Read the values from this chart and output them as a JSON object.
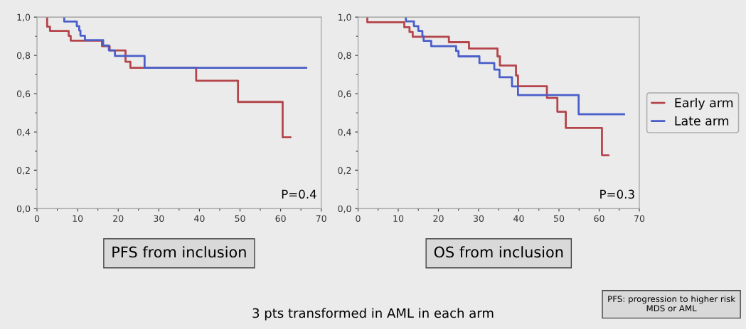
{
  "chart_data": [
    {
      "type": "step",
      "title": "PFS from inclusion",
      "annotations": [
        "P=0.4"
      ],
      "xlim": [
        0,
        70
      ],
      "xticks": [
        0,
        10,
        20,
        30,
        40,
        50,
        60,
        70
      ],
      "ylim": [
        0,
        1
      ],
      "yticks": [
        {
          "value": 0,
          "label": "0,0"
        },
        {
          "value": 0.2,
          "label": "0,2"
        },
        {
          "value": 0.4,
          "label": "0,4"
        },
        {
          "value": 0.6,
          "label": "0,6"
        },
        {
          "value": 0.8,
          "label": "0,8"
        },
        {
          "value": 1,
          "label": "1,0"
        }
      ],
      "grid": false,
      "legend": false,
      "series": [
        {
          "color": "#b5444b",
          "x": [
            2.5,
            2.5,
            3.2,
            7.8,
            8.3,
            16.0,
            17.9,
            21.8,
            23.0,
            39.2,
            49.5,
            60.5,
            62.4
          ],
          "values": [
            1.0,
            0.95,
            0.928,
            0.902,
            0.877,
            0.848,
            0.826,
            0.767,
            0.735,
            0.668,
            0.557,
            0.372,
            0.372
          ]
        },
        {
          "color": "#4a5fc9",
          "x": [
            6.7,
            6.7,
            9.8,
            10.4,
            10.7,
            11.8,
            16.3,
            17.7,
            19.2,
            26.5,
            66.3
          ],
          "values": [
            1.0,
            0.977,
            0.953,
            0.93,
            0.903,
            0.88,
            0.852,
            0.826,
            0.797,
            0.735,
            0.735
          ]
        }
      ]
    },
    {
      "type": "step",
      "title": "OS from inclusion",
      "annotations": [
        "P=0.3",
        "3 pts transformed in AML in each arm",
        "PFS: progression to higher risk MDS or AML"
      ],
      "xlim": [
        0,
        70
      ],
      "xticks": [
        0,
        10,
        20,
        30,
        40,
        50,
        60,
        70
      ],
      "ylim": [
        0,
        1
      ],
      "yticks": [
        {
          "value": 0,
          "label": "0,0"
        },
        {
          "value": 0.2,
          "label": "0,2"
        },
        {
          "value": 0.4,
          "label": "0,4"
        },
        {
          "value": 0.6,
          "label": "0,6"
        },
        {
          "value": 0.8,
          "label": "0,8"
        },
        {
          "value": 1,
          "label": "1,0"
        }
      ],
      "grid": false,
      "legend": "right",
      "series": [
        {
          "name": "Early arm",
          "color": "#b5444b",
          "x": [
            2.3,
            2.3,
            11.5,
            12.8,
            13.6,
            22.6,
            27.6,
            34.7,
            35.3,
            39.3,
            39.8,
            47.0,
            49.6,
            51.7,
            60.7,
            62.3
          ],
          "values": [
            1.0,
            0.973,
            0.947,
            0.922,
            0.897,
            0.869,
            0.836,
            0.795,
            0.747,
            0.695,
            0.639,
            0.578,
            0.506,
            0.421,
            0.279,
            0.279
          ]
        },
        {
          "name": "Late arm",
          "color": "#4a5fc9",
          "x": [
            11.9,
            11.9,
            13.9,
            15.0,
            16.0,
            16.3,
            18.2,
            24.4,
            25.0,
            30.2,
            33.9,
            35.2,
            38.3,
            39.8,
            54.9,
            66.2
          ],
          "values": [
            1.0,
            0.978,
            0.953,
            0.928,
            0.901,
            0.876,
            0.848,
            0.823,
            0.795,
            0.76,
            0.726,
            0.686,
            0.638,
            0.593,
            0.493,
            0.493
          ]
        }
      ]
    }
  ]
}
